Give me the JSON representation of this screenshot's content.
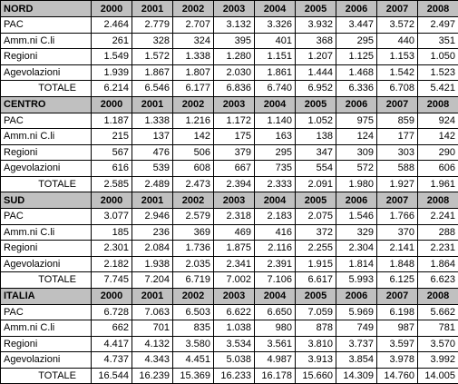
{
  "sections": [
    {
      "title": "NORD",
      "years": [
        "2000",
        "2001",
        "2002",
        "2003",
        "2004",
        "2005",
        "2006",
        "2007",
        "2008"
      ],
      "rows": [
        {
          "label": "PAC",
          "values": [
            "2.464",
            "2.779",
            "2.707",
            "3.132",
            "3.326",
            "3.932",
            "3.447",
            "3.572",
            "2.497"
          ]
        },
        {
          "label": "Amm.ni C.li",
          "values": [
            "261",
            "328",
            "324",
            "395",
            "401",
            "368",
            "295",
            "440",
            "351"
          ]
        },
        {
          "label": "Regioni",
          "values": [
            "1.549",
            "1.572",
            "1.338",
            "1.280",
            "1.151",
            "1.207",
            "1.125",
            "1.153",
            "1.050"
          ]
        },
        {
          "label": "Agevolazioni",
          "values": [
            "1.939",
            "1.867",
            "1.807",
            "2.030",
            "1.861",
            "1.444",
            "1.468",
            "1.542",
            "1.523"
          ]
        },
        {
          "label": "TOTALE",
          "values": [
            "6.214",
            "6.546",
            "6.177",
            "6.836",
            "6.740",
            "6.952",
            "6.336",
            "6.708",
            "5.421"
          ]
        }
      ]
    },
    {
      "title": "CENTRO",
      "years": [
        "2000",
        "2001",
        "2002",
        "2003",
        "2004",
        "2005",
        "2006",
        "2007",
        "2008"
      ],
      "rows": [
        {
          "label": "PAC",
          "values": [
            "1.187",
            "1.338",
            "1.216",
            "1.172",
            "1.140",
            "1.052",
            "975",
            "859",
            "924"
          ]
        },
        {
          "label": "Amm.ni C.li",
          "values": [
            "215",
            "137",
            "142",
            "175",
            "163",
            "138",
            "124",
            "177",
            "142"
          ]
        },
        {
          "label": "Regioni",
          "values": [
            "567",
            "476",
            "506",
            "379",
            "295",
            "347",
            "309",
            "303",
            "290"
          ]
        },
        {
          "label": "Agevolazioni",
          "values": [
            "616",
            "539",
            "608",
            "667",
            "735",
            "554",
            "572",
            "588",
            "606"
          ]
        },
        {
          "label": "TOTALE",
          "values": [
            "2.585",
            "2.489",
            "2.473",
            "2.394",
            "2.333",
            "2.091",
            "1.980",
            "1.927",
            "1.961"
          ]
        }
      ]
    },
    {
      "title": "SUD",
      "years": [
        "2000",
        "2001",
        "2002",
        "2003",
        "2004",
        "2005",
        "2006",
        "2007",
        "2008"
      ],
      "rows": [
        {
          "label": "PAC",
          "values": [
            "3.077",
            "2.946",
            "2.579",
            "2.318",
            "2.183",
            "2.075",
            "1.546",
            "1.766",
            "2.241"
          ]
        },
        {
          "label": "Amm.ni C.li",
          "values": [
            "185",
            "236",
            "369",
            "469",
            "416",
            "372",
            "329",
            "370",
            "288"
          ]
        },
        {
          "label": "Regioni",
          "values": [
            "2.301",
            "2.084",
            "1.736",
            "1.875",
            "2.116",
            "2.255",
            "2.304",
            "2.141",
            "2.231"
          ]
        },
        {
          "label": "Agevolazioni",
          "values": [
            "2.182",
            "1.938",
            "2.035",
            "2.341",
            "2.391",
            "1.915",
            "1.814",
            "1.848",
            "1.864"
          ]
        },
        {
          "label": "TOTALE",
          "values": [
            "7.745",
            "7.204",
            "6.719",
            "7.002",
            "7.106",
            "6.617",
            "5.993",
            "6.125",
            "6.623"
          ]
        }
      ]
    },
    {
      "title": "ITALIA",
      "years": [
        "2000",
        "2001",
        "2002",
        "2003",
        "2004",
        "2005",
        "2006",
        "2007",
        "2008"
      ],
      "rows": [
        {
          "label": "PAC",
          "values": [
            "6.728",
            "7.063",
            "6.503",
            "6.622",
            "6.650",
            "7.059",
            "5.969",
            "6.198",
            "5.662"
          ]
        },
        {
          "label": "Amm.ni C.li",
          "values": [
            "662",
            "701",
            "835",
            "1.038",
            "980",
            "878",
            "749",
            "987",
            "781"
          ]
        },
        {
          "label": "Regioni",
          "values": [
            "4.417",
            "4.132",
            "3.580",
            "3.534",
            "3.561",
            "3.810",
            "3.737",
            "3.597",
            "3.570"
          ]
        },
        {
          "label": "Agevolazioni",
          "values": [
            "4.737",
            "4.343",
            "4.451",
            "5.038",
            "4.987",
            "3.913",
            "3.854",
            "3.978",
            "3.992"
          ]
        },
        {
          "label": "TOTALE",
          "values": [
            "16.544",
            "16.239",
            "15.369",
            "16.233",
            "16.178",
            "15.660",
            "14.309",
            "14.760",
            "14.005"
          ]
        }
      ]
    }
  ]
}
